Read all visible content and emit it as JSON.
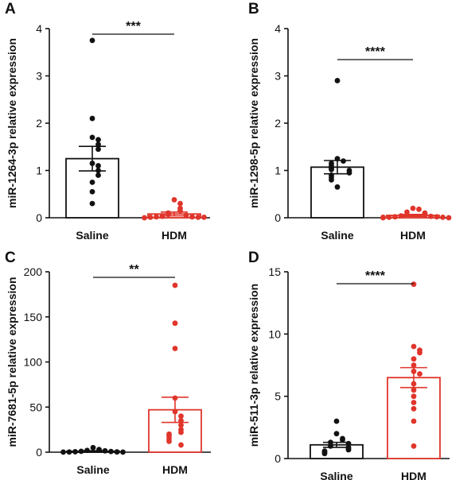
{
  "colors": {
    "saline": "#111111",
    "hdm": "#e0352b",
    "axis": "#111111"
  },
  "chart_data": [
    {
      "panel": "A",
      "type": "bar",
      "ylabel": "miR-1264-3p relative expression",
      "ylim": [
        0,
        4
      ],
      "yticks": [
        "0",
        "1",
        "2",
        "3",
        "4"
      ],
      "categories": [
        "Saline",
        "HDM"
      ],
      "series": [
        {
          "category": "Saline",
          "color_key": "saline",
          "mean": 1.25,
          "sem": 0.26,
          "points": [
            3.75,
            2.1,
            1.7,
            1.65,
            1.55,
            1.45,
            1.15,
            1.1,
            1.0,
            0.9,
            0.75,
            0.55,
            0.3
          ]
        },
        {
          "category": "HDM",
          "color_key": "hdm",
          "mean": 0.08,
          "sem": 0.04,
          "points": [
            0.38,
            0.3,
            0.2,
            0.15,
            0.1,
            0.07,
            0.05,
            0.04,
            0.03,
            0.02,
            0.02,
            0.01,
            0.01,
            0.01,
            0.0
          ]
        }
      ],
      "significance": "***"
    },
    {
      "panel": "B",
      "type": "bar",
      "ylabel": "miR-1298-5p relative expression",
      "ylim": [
        0,
        4
      ],
      "yticks": [
        "0",
        "1",
        "2",
        "3",
        "4"
      ],
      "categories": [
        "Saline",
        "HDM"
      ],
      "series": [
        {
          "category": "Saline",
          "color_key": "saline",
          "mean": 1.07,
          "sem": 0.14,
          "points": [
            2.9,
            1.25,
            1.2,
            1.15,
            1.1,
            1.05,
            1.02,
            1.0,
            0.95,
            0.9,
            0.85,
            0.8,
            0.65
          ]
        },
        {
          "category": "HDM",
          "color_key": "hdm",
          "mean": 0.05,
          "sem": 0.02,
          "points": [
            0.2,
            0.18,
            0.12,
            0.1,
            0.08,
            0.05,
            0.04,
            0.03,
            0.02,
            0.02,
            0.01,
            0.01,
            0.01,
            0.0,
            0.0
          ]
        }
      ],
      "significance": "****"
    },
    {
      "panel": "C",
      "type": "bar",
      "ylabel": "miR-7681-5p relative expression",
      "ylim": [
        0,
        200
      ],
      "yticks": [
        "0",
        "50",
        "100",
        "150",
        "200"
      ],
      "categories": [
        "Saline",
        "HDM"
      ],
      "series": [
        {
          "category": "Saline",
          "color_key": "saline",
          "mean": 1.0,
          "sem": 0.6,
          "points": [
            5,
            3,
            2,
            1.5,
            1,
            0.8,
            0.5,
            0.3,
            0.2,
            0.1,
            0.1
          ]
        },
        {
          "category": "HDM",
          "color_key": "hdm",
          "mean": 47,
          "sem": 14,
          "points": [
            185,
            143,
            115,
            60,
            45,
            40,
            35,
            30,
            25,
            22,
            20,
            18,
            15,
            12,
            8
          ]
        }
      ],
      "significance": "**"
    },
    {
      "panel": "D",
      "type": "bar",
      "ylabel": "miR-511-3p relative expression",
      "ylim": [
        0,
        15
      ],
      "yticks": [
        "0",
        "5",
        "10",
        "15"
      ],
      "categories": [
        "Saline",
        "HDM"
      ],
      "series": [
        {
          "category": "Saline",
          "color_key": "saline",
          "mean": 1.1,
          "sem": 0.2,
          "points": [
            3.0,
            2.0,
            1.6,
            1.5,
            1.3,
            1.2,
            1.0,
            0.9,
            0.8,
            0.7,
            0.6,
            0.5,
            0.4
          ]
        },
        {
          "category": "HDM",
          "color_key": "hdm",
          "mean": 6.5,
          "sem": 0.8,
          "points": [
            14.0,
            9.0,
            8.7,
            8.5,
            8.0,
            7.5,
            7.0,
            6.8,
            6.0,
            5.5,
            5.0,
            4.5,
            4.0,
            3.0,
            1.0
          ]
        }
      ],
      "significance": "****"
    }
  ]
}
